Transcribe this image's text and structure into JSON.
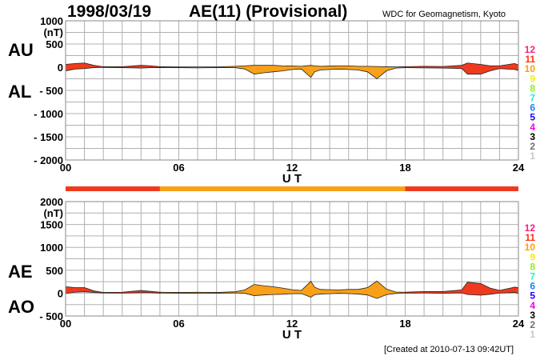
{
  "header": {
    "date": "1998/03/19",
    "title": "AE(11) (Provisional)",
    "organization": "WDC for Geomagnetism, Kyoto"
  },
  "footer": {
    "created": "[Created at 2010-07-13 09:42UT]"
  },
  "colors": {
    "fill_11": "#f03a1e",
    "fill_10": "#f8a018",
    "grid": "#b0b0b0"
  },
  "station_legend": [
    {
      "label": "12",
      "color": "#ff1a80"
    },
    {
      "label": "11",
      "color": "#ff3010"
    },
    {
      "label": "10",
      "color": "#ffa000"
    },
    {
      "label": "9",
      "color": "#f0f000"
    },
    {
      "label": "8",
      "color": "#90f020"
    },
    {
      "label": "7",
      "color": "#20f0d0"
    },
    {
      "label": "6",
      "color": "#2080ff"
    },
    {
      "label": "5",
      "color": "#2000ff"
    },
    {
      "label": "4",
      "color": "#f000f0"
    },
    {
      "label": "3",
      "color": "#000000"
    },
    {
      "label": "2",
      "color": "#707070"
    },
    {
      "label": "1",
      "color": "#c8c8c8"
    }
  ],
  "station_count_segments": [
    {
      "start": 0,
      "end": 5,
      "stations": 11
    },
    {
      "start": 5,
      "end": 18,
      "stations": 10
    },
    {
      "start": 18,
      "end": 24,
      "stations": 11
    }
  ],
  "chart_data": [
    {
      "type": "area",
      "name": "AU/AL",
      "upper_label": "AU",
      "lower_label": "AL",
      "xlabel": "U T",
      "unit": "(nT)",
      "xlim": [
        0,
        24
      ],
      "ylim": [
        -2000,
        1000
      ],
      "yticks": [
        1000,
        500,
        0,
        -500,
        -1000,
        -1500,
        -2000
      ],
      "ytick_labels": [
        "1000",
        "500",
        "0",
        "- 500",
        "- 1000",
        "- 1500",
        "- 2000"
      ],
      "xticks": [
        0,
        6,
        12,
        18,
        24
      ],
      "xtick_labels": [
        "00",
        "06",
        "12",
        "18",
        "24"
      ],
      "grid": true,
      "x": [
        0,
        0.5,
        1,
        1.5,
        2,
        3,
        4,
        4.5,
        5,
        6,
        7,
        8,
        9,
        9.5,
        10,
        10.5,
        11,
        11.5,
        12,
        12.5,
        13,
        13.2,
        13.5,
        14,
        14.5,
        15,
        15.5,
        16,
        16.5,
        17,
        17.5,
        18,
        19,
        20,
        21,
        21.3,
        22,
        22.5,
        23,
        23.8,
        24
      ],
      "series": [
        {
          "name": "AU",
          "values": [
            60,
            80,
            90,
            40,
            10,
            10,
            40,
            30,
            10,
            5,
            5,
            5,
            20,
            30,
            40,
            40,
            40,
            30,
            25,
            20,
            40,
            30,
            20,
            25,
            30,
            30,
            20,
            20,
            15,
            10,
            5,
            10,
            20,
            15,
            40,
            90,
            60,
            30,
            30,
            80,
            50
          ]
        },
        {
          "name": "AL",
          "values": [
            -80,
            -40,
            -30,
            -10,
            -5,
            -10,
            -20,
            -10,
            -10,
            -10,
            -15,
            -10,
            -10,
            -40,
            -150,
            -120,
            -100,
            -80,
            -50,
            -40,
            -220,
            -100,
            -60,
            -50,
            -40,
            -50,
            -60,
            -100,
            -250,
            -80,
            -20,
            -10,
            -15,
            -20,
            -30,
            -150,
            -150,
            -80,
            -30,
            -50,
            -70
          ]
        }
      ]
    },
    {
      "type": "area",
      "name": "AE/AO",
      "upper_label": "AE",
      "lower_label": "AO",
      "xlabel": "U T",
      "unit": "(nT)",
      "xlim": [
        0,
        24
      ],
      "ylim": [
        -500,
        2000
      ],
      "yticks": [
        2000,
        1500,
        1000,
        500,
        0,
        -500
      ],
      "ytick_labels": [
        "2000",
        "1500",
        "1000",
        "500",
        "0",
        "- 500"
      ],
      "xticks": [
        0,
        6,
        12,
        18,
        24
      ],
      "xtick_labels": [
        "00",
        "06",
        "12",
        "18",
        "24"
      ],
      "grid": true
    }
  ]
}
